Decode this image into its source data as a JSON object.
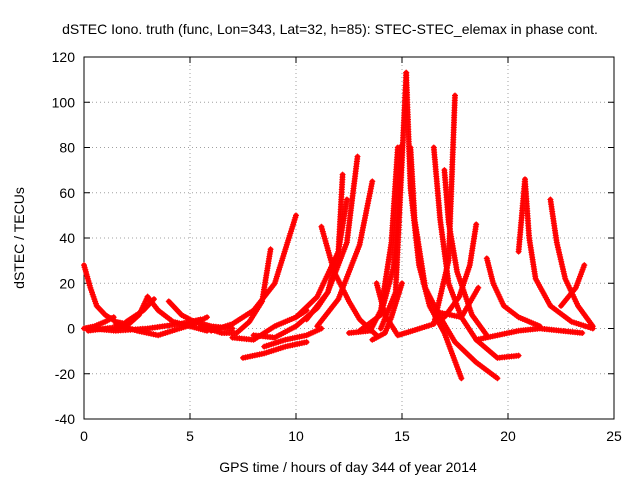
{
  "chart_data": {
    "type": "scatter",
    "title": "dSTEC Iono. truth (func, Lon=343, Lat=32, h=85): STEC-STEC_elemax in phase cont.",
    "xlabel": "GPS time / hours of day 344 of year 2014",
    "ylabel": "dSTEC / TECUs",
    "xlim": [
      0,
      25
    ],
    "ylim": [
      -40,
      120
    ],
    "x_ticks": [
      "0",
      "5",
      "10",
      "15",
      "20",
      "25"
    ],
    "y_ticks": [
      "-40",
      "-20",
      "0",
      "20",
      "40",
      "60",
      "80",
      "100",
      "120"
    ],
    "grid": true,
    "marker": "+",
    "color": "#ff0000",
    "series": [
      {
        "points": [
          [
            0.0,
            28
          ],
          [
            0.3,
            18
          ],
          [
            0.6,
            10
          ],
          [
            1.0,
            6
          ],
          [
            1.5,
            3
          ],
          [
            2.0,
            2
          ]
        ]
      },
      {
        "points": [
          [
            0.0,
            0
          ],
          [
            0.5,
            1
          ],
          [
            1.0,
            3
          ],
          [
            1.4,
            5
          ]
        ]
      },
      {
        "points": [
          [
            0.2,
            -1
          ],
          [
            1.0,
            0
          ],
          [
            2.0,
            1
          ],
          [
            2.6,
            6
          ],
          [
            3.0,
            14
          ]
        ]
      },
      {
        "points": [
          [
            2.0,
            3
          ],
          [
            2.8,
            8
          ],
          [
            3.3,
            13
          ]
        ]
      },
      {
        "points": [
          [
            3.0,
            14
          ],
          [
            3.5,
            8
          ],
          [
            4.2,
            3
          ],
          [
            5.0,
            1
          ],
          [
            5.8,
            -1
          ]
        ]
      },
      {
        "points": [
          [
            1.5,
            2
          ],
          [
            2.5,
            -1
          ],
          [
            3.5,
            -3
          ],
          [
            4.5,
            0
          ],
          [
            5.2,
            2
          ],
          [
            5.8,
            5
          ]
        ]
      },
      {
        "points": [
          [
            4.0,
            12
          ],
          [
            4.6,
            6
          ],
          [
            5.2,
            3
          ],
          [
            6.0,
            1
          ],
          [
            7.0,
            0
          ]
        ]
      },
      {
        "points": [
          [
            0.3,
            0
          ],
          [
            1.5,
            -1
          ],
          [
            3.0,
            0
          ],
          [
            4.5,
            2
          ],
          [
            5.5,
            4
          ]
        ]
      },
      {
        "points": [
          [
            5.5,
            1
          ],
          [
            6.5,
            -2
          ],
          [
            7.2,
            -2
          ],
          [
            7.8,
            3
          ],
          [
            8.4,
            12
          ],
          [
            8.8,
            35
          ]
        ]
      },
      {
        "points": [
          [
            6.0,
            -1
          ],
          [
            7.0,
            2
          ],
          [
            8.0,
            8
          ],
          [
            9.0,
            20
          ],
          [
            9.5,
            35
          ],
          [
            10.0,
            50
          ]
        ]
      },
      {
        "points": [
          [
            7.5,
            -13
          ],
          [
            8.5,
            -11
          ],
          [
            9.5,
            -8
          ],
          [
            10.5,
            -6
          ]
        ]
      },
      {
        "points": [
          [
            8.5,
            -8
          ],
          [
            9.5,
            -5
          ],
          [
            10.5,
            -3
          ],
          [
            11.2,
            0
          ]
        ]
      },
      {
        "points": [
          [
            7.0,
            -4
          ],
          [
            8.0,
            -5
          ],
          [
            9.0,
            1
          ],
          [
            10.0,
            5
          ],
          [
            10.5,
            8
          ]
        ]
      },
      {
        "points": [
          [
            8.0,
            -3
          ],
          [
            9.0,
            -4
          ],
          [
            10.0,
            1
          ],
          [
            11.0,
            9
          ],
          [
            11.5,
            16
          ],
          [
            12.0,
            34
          ],
          [
            12.2,
            68
          ]
        ]
      },
      {
        "points": [
          [
            10.0,
            5
          ],
          [
            11.0,
            14
          ],
          [
            12.0,
            34
          ],
          [
            12.4,
            57
          ]
        ]
      },
      {
        "points": [
          [
            10.5,
            4
          ],
          [
            11.5,
            16
          ],
          [
            12.4,
            38
          ],
          [
            12.9,
            76
          ]
        ]
      },
      {
        "points": [
          [
            11.0,
            1
          ],
          [
            12.0,
            13
          ],
          [
            13.0,
            37
          ],
          [
            13.6,
            65
          ]
        ]
      },
      {
        "points": [
          [
            11.2,
            45
          ],
          [
            11.8,
            25
          ],
          [
            12.5,
            12
          ],
          [
            13.0,
            4
          ],
          [
            13.8,
            -3
          ]
        ]
      },
      {
        "points": [
          [
            12.5,
            -2
          ],
          [
            13.5,
            -1
          ],
          [
            14.0,
            8
          ],
          [
            14.5,
            38
          ],
          [
            14.8,
            80
          ]
        ]
      },
      {
        "points": [
          [
            13.0,
            -1
          ],
          [
            14.0,
            6
          ],
          [
            14.6,
            27
          ],
          [
            15.0,
            81
          ]
        ]
      },
      {
        "points": [
          [
            14.0,
            0
          ],
          [
            14.7,
            16
          ],
          [
            15.2,
            113
          ]
        ]
      },
      {
        "points": [
          [
            15.0,
            20
          ],
          [
            14.5,
            5
          ],
          [
            14.2,
            -2
          ],
          [
            13.6,
            -5
          ]
        ]
      },
      {
        "points": [
          [
            15.2,
            113
          ],
          [
            15.4,
            62
          ],
          [
            15.8,
            28
          ],
          [
            16.3,
            10
          ],
          [
            17.0,
            -2
          ],
          [
            17.8,
            -22
          ]
        ]
      },
      {
        "points": [
          [
            15.4,
            80
          ],
          [
            15.6,
            48
          ],
          [
            16.1,
            18
          ],
          [
            16.8,
            5
          ],
          [
            17.5,
            -6
          ],
          [
            18.5,
            -15
          ],
          [
            19.5,
            -22
          ]
        ]
      },
      {
        "points": [
          [
            13.8,
            20
          ],
          [
            14.2,
            6
          ],
          [
            14.8,
            -3
          ],
          [
            15.5,
            -1
          ],
          [
            16.5,
            2
          ],
          [
            17.2,
            30
          ],
          [
            17.5,
            103
          ]
        ]
      },
      {
        "points": [
          [
            16.5,
            80
          ],
          [
            16.8,
            48
          ],
          [
            17.2,
            20
          ],
          [
            17.8,
            5
          ],
          [
            18.5,
            -5
          ],
          [
            19.5,
            -13
          ],
          [
            20.5,
            -12
          ]
        ]
      },
      {
        "points": [
          [
            17.0,
            70
          ],
          [
            17.2,
            47
          ],
          [
            17.6,
            25
          ],
          [
            18.3,
            6
          ],
          [
            19.0,
            -3
          ]
        ]
      },
      {
        "points": [
          [
            17.0,
            5
          ],
          [
            17.7,
            14
          ],
          [
            18.2,
            28
          ],
          [
            18.5,
            46
          ]
        ]
      },
      {
        "points": [
          [
            16.8,
            7
          ],
          [
            17.8,
            5
          ],
          [
            18.6,
            18
          ]
        ]
      },
      {
        "points": [
          [
            19.0,
            31
          ],
          [
            19.3,
            20
          ],
          [
            19.8,
            10
          ],
          [
            20.5,
            5
          ],
          [
            21.5,
            1
          ]
        ]
      },
      {
        "points": [
          [
            20.5,
            34
          ],
          [
            20.8,
            66
          ],
          [
            21.0,
            40
          ],
          [
            21.3,
            22
          ],
          [
            22.0,
            10
          ],
          [
            23.0,
            3
          ],
          [
            24.0,
            0
          ]
        ]
      },
      {
        "points": [
          [
            22.0,
            57
          ],
          [
            22.3,
            38
          ],
          [
            22.7,
            22
          ],
          [
            23.3,
            10
          ],
          [
            24.0,
            1
          ]
        ]
      },
      {
        "points": [
          [
            22.5,
            10
          ],
          [
            23.2,
            18
          ],
          [
            23.6,
            28
          ]
        ]
      },
      {
        "points": [
          [
            18.5,
            -5
          ],
          [
            19.5,
            -3
          ],
          [
            20.5,
            -1
          ],
          [
            21.5,
            0
          ],
          [
            22.5,
            -1
          ],
          [
            23.5,
            -2
          ]
        ]
      }
    ]
  }
}
